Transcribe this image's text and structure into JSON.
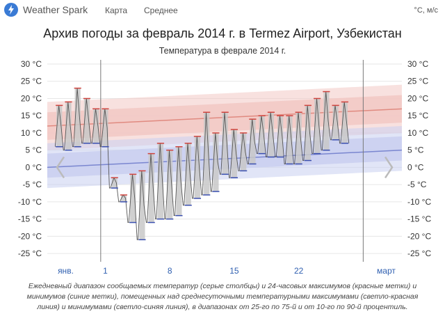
{
  "header": {
    "brand": "Weather Spark",
    "nav": [
      "Карта",
      "Среднее"
    ],
    "units": "°C, м/с"
  },
  "page_title": "Архив погоды за февраль 2014 г. в Termez Airport, Узбекистан",
  "caption": "Ежедневный диапазон сообщаемых температур (серые столбцы) и 24-часовых максимумов (красные метки) и минимумов (синие метки), помещенных над среднесуточными температурными максимумами (светло-красная линия) и минимумами (светло-синяя линия), в диапазонах от 25-го по 75-й и от 10-го по 90-й процентиль.",
  "colors": {
    "bar": "#c8c8c8",
    "temp_line": "#555555",
    "high_mark": "#d0443e",
    "low_mark": "#3a4fb0",
    "avg_high": "#e08a80",
    "avg_low": "#7a86d0",
    "high_band": "#f2c8c4",
    "low_band": "#c9cff0"
  },
  "chart_data": {
    "type": "area",
    "title": "Температура в феврале 2014 г.",
    "y_unit": "°C",
    "ylim": [
      -27,
      30
    ],
    "y_ticks": [
      30,
      25,
      20,
      15,
      10,
      5,
      0,
      -5,
      -10,
      -15,
      -20,
      -25
    ],
    "y_tick_labels": [
      "30 °C",
      "25 °C",
      "20 °C",
      "15 °C",
      "10 °C",
      "5 °C",
      "0 °C",
      "-5 °C",
      "-10 °C",
      "-15 °C",
      "-20 °C",
      "-25 °C"
    ],
    "x_ticks": [
      {
        "label": "янв.",
        "day": -3.3
      },
      {
        "label": "1",
        "day": 1
      },
      {
        "label": "8",
        "day": 8
      },
      {
        "label": "15",
        "day": 15
      },
      {
        "label": "22",
        "day": 22
      },
      {
        "label": "март",
        "day": 31.5
      }
    ],
    "month_boundaries": [
      0.5,
      29
    ],
    "day_range": [
      -5.3,
      33.2
    ],
    "daily_high": [
      18,
      19,
      23,
      20,
      17,
      17,
      -3,
      -8,
      -2,
      -1,
      4,
      7,
      5,
      6,
      7,
      9,
      16,
      10,
      16,
      11,
      10,
      14,
      15,
      16,
      15,
      15,
      16,
      18,
      20,
      22,
      18,
      19
    ],
    "daily_low": [
      6,
      5,
      6,
      7,
      7,
      6,
      -6,
      -10,
      -16,
      -21,
      -16,
      -15,
      -15,
      -14,
      -11,
      -9,
      -8,
      -7,
      -2,
      -3,
      -1,
      1,
      4,
      3,
      3,
      1,
      1,
      2,
      4,
      5,
      8,
      7
    ],
    "daily_high_days": [
      -4,
      -3,
      -2,
      -1,
      0,
      1,
      2,
      3,
      4,
      5,
      6,
      7,
      8,
      9,
      10,
      11,
      12,
      13,
      14,
      15,
      16,
      17,
      18,
      19,
      20,
      21,
      22,
      23,
      24,
      25,
      26,
      27
    ],
    "avg_high": {
      "day": [
        -5.3,
        33.2
      ],
      "value": [
        12,
        17
      ]
    },
    "avg_low": {
      "day": [
        -5.3,
        33.2
      ],
      "value": [
        0,
        5
      ]
    },
    "high_band_25_75": {
      "day": [
        -5.3,
        33.2
      ],
      "lower": [
        8,
        13
      ],
      "upper": [
        16,
        21
      ]
    },
    "high_band_10_90": {
      "day": [
        -5.3,
        33.2
      ],
      "lower": [
        5,
        10
      ],
      "upper": [
        19,
        24
      ]
    },
    "low_band_25_75": {
      "day": [
        -5.3,
        33.2
      ],
      "lower": [
        -3,
        2
      ],
      "upper": [
        4,
        9
      ]
    },
    "low_band_10_90": {
      "day": [
        -5.3,
        33.2
      ],
      "lower": [
        -6,
        -1
      ],
      "upper": [
        7,
        12
      ]
    }
  }
}
